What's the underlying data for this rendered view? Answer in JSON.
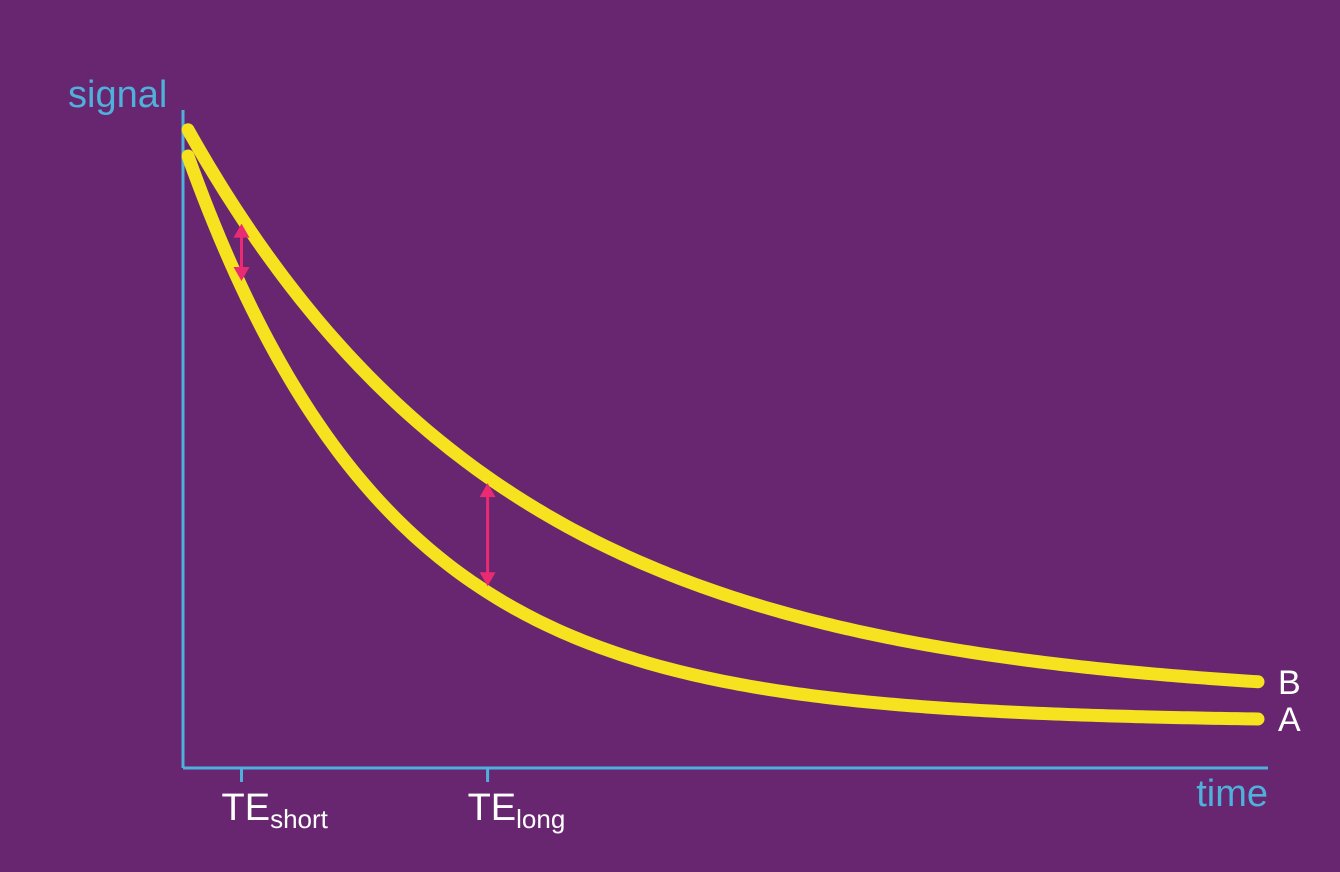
{
  "chart_data": {
    "type": "line",
    "title": "",
    "xlabel": "time",
    "ylabel": "signal",
    "xlim": [
      0,
      10
    ],
    "ylim": [
      0,
      1
    ],
    "grid": false,
    "legend": "inline-right",
    "x_ticks": [
      {
        "main": "TE",
        "sub": "short",
        "x": 0.5
      },
      {
        "main": "TE",
        "sub": "long",
        "x": 2.8
      }
    ],
    "series": [
      {
        "name": "A",
        "y0": 0.93,
        "tau": 1.9,
        "asymptote": 0.07
      },
      {
        "name": "B",
        "y0": 0.97,
        "tau": 3.0,
        "asymptote": 0.1
      }
    ],
    "difference_arrows_at": [
      0.5,
      2.8
    ],
    "colors": {
      "background": "#67266f",
      "axis": "#4fb0dc",
      "curve": "#f6e21e",
      "arrow": "#ea2a72",
      "text": "#ffffff"
    }
  }
}
